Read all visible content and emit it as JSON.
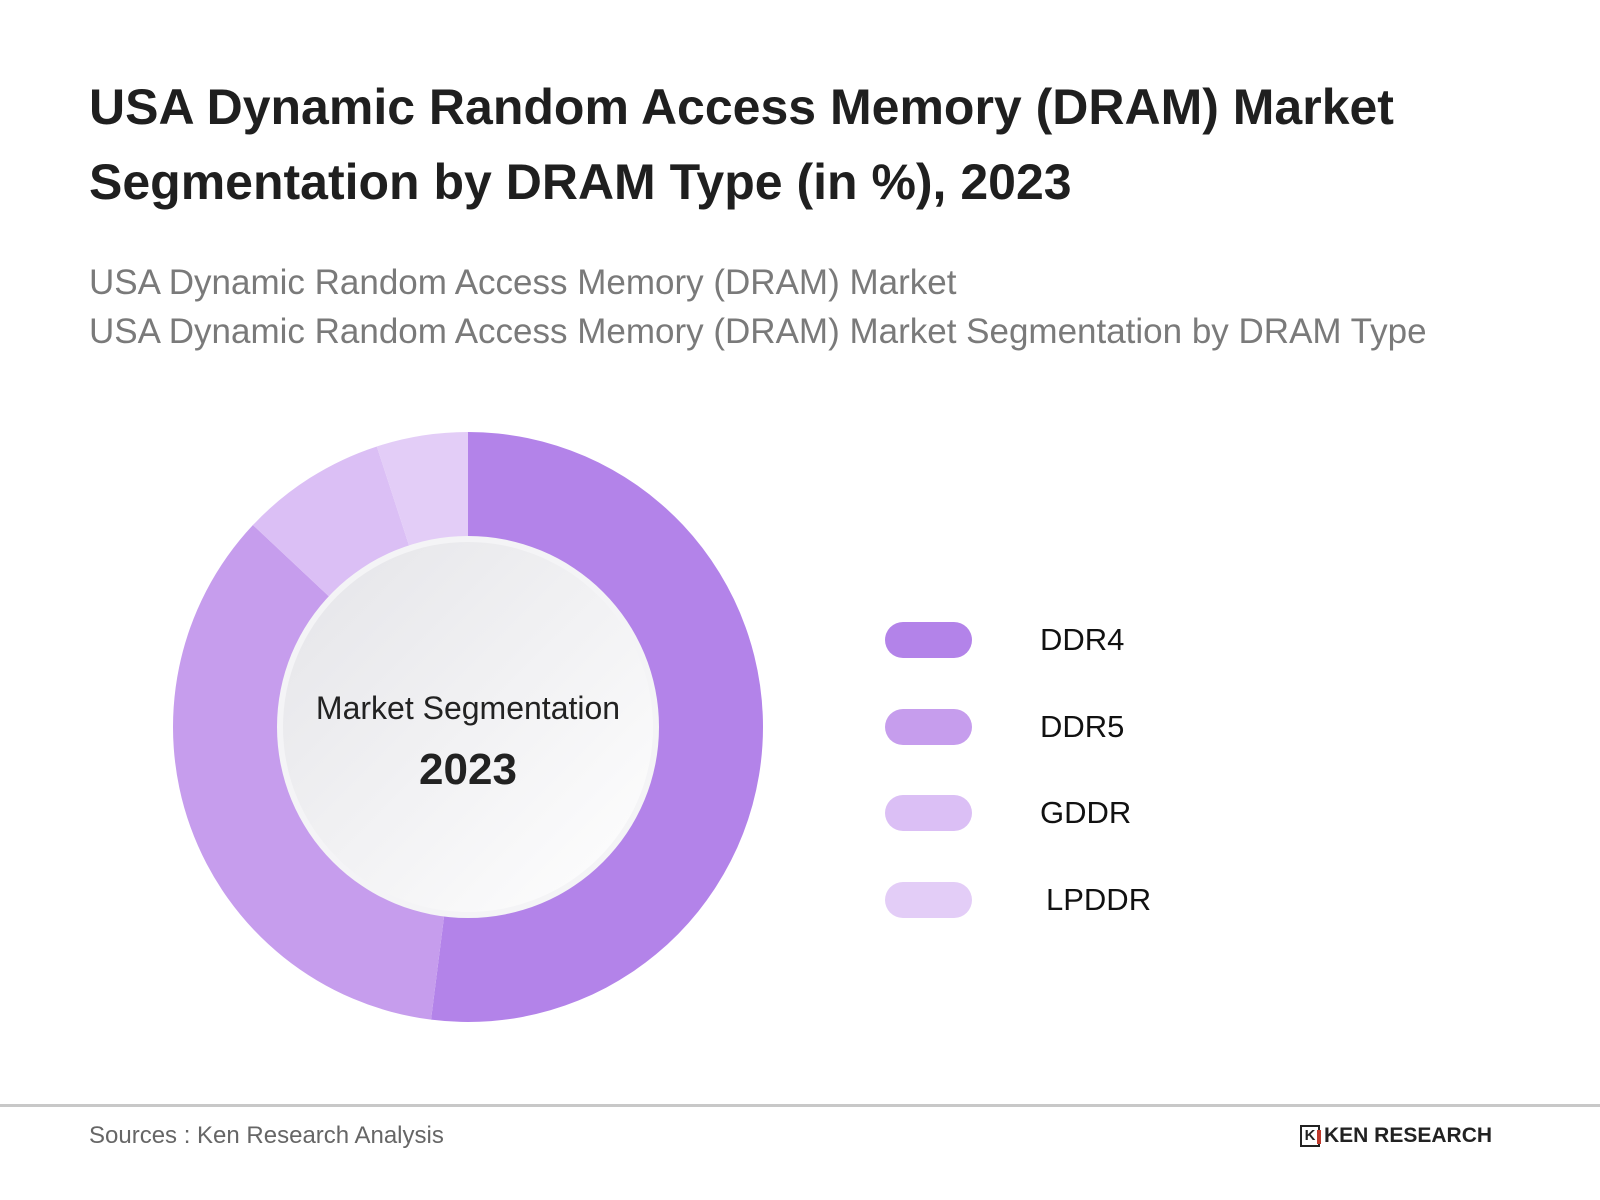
{
  "header": {
    "title": "USA Dynamic Random Access Memory (DRAM) Market Segmentation by DRAM Type (in %), 2023",
    "subtitle_line1": "USA Dynamic Random Access Memory (DRAM) Market",
    "subtitle_line2": "USA Dynamic Random Access Memory (DRAM) Market Segmentation by DRAM Type"
  },
  "chart_data": {
    "type": "pie",
    "variant": "donut",
    "title": "USA Dynamic Random Access Memory (DRAM) Market Segmentation by DRAM Type (in %), 2023",
    "center_label": "Market Segmentation",
    "center_value": "2023",
    "categories": [
      "DDR4",
      "DDR5",
      "GDDR",
      "LPDDR"
    ],
    "values": [
      52,
      35,
      8,
      5
    ],
    "colors": [
      "#b383e9",
      "#c69ded",
      "#dbbff5",
      "#e3cdf7"
    ],
    "legend_position": "right"
  },
  "footer": {
    "sources": "Sources : Ken Research Analysis",
    "logo_text": "KEN RESEARCH",
    "logo_mark": "K"
  }
}
